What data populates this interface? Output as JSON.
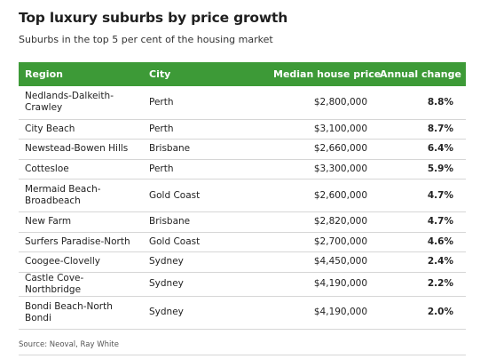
{
  "header": {
    "title": "Top luxury suburbs by price growth",
    "subtitle": "Suburbs in the top 5 per cent of the housing market"
  },
  "source": "Source: Neoval, Ray White",
  "colors": {
    "header_bg": "#3d9a37",
    "header_text": "#ffffff",
    "row_border": "#d6d6d6"
  },
  "chart_data": {
    "type": "table",
    "title": "Top luxury suburbs by price growth",
    "subtitle": "Suburbs in the top 5 per cent of the housing market",
    "columns": [
      "Region",
      "City",
      "Median house price",
      "Annual change"
    ],
    "rows": [
      {
        "region_lines": [
          "Nedlands-Dalkeith-",
          "Crawley"
        ],
        "city": "Perth",
        "price": "$2,800,000",
        "change": "8.8%"
      },
      {
        "region_lines": [
          "City Beach"
        ],
        "city": "Perth",
        "price": "$3,100,000",
        "change": "8.7%"
      },
      {
        "region_lines": [
          "Newstead-Bowen Hills"
        ],
        "city": "Brisbane",
        "price": "$2,660,000",
        "change": "6.4%"
      },
      {
        "region_lines": [
          "Cottesloe"
        ],
        "city": "Perth",
        "price": "$3,300,000",
        "change": "5.9%"
      },
      {
        "region_lines": [
          "Mermaid Beach-",
          "Broadbeach"
        ],
        "city": "Gold Coast",
        "price": "$2,600,000",
        "change": "4.7%"
      },
      {
        "region_lines": [
          "New Farm"
        ],
        "city": "Brisbane",
        "price": "$2,820,000",
        "change": "4.7%"
      },
      {
        "region_lines": [
          "Surfers Paradise-North"
        ],
        "city": "Gold Coast",
        "price": "$2,700,000",
        "change": "4.6%"
      },
      {
        "region_lines": [
          "Coogee-Clovelly"
        ],
        "city": "Sydney",
        "price": "$4,450,000",
        "change": "2.4%"
      },
      {
        "region_lines": [
          "Castle Cove-Northbridge"
        ],
        "city": "Sydney",
        "price": "$4,190,000",
        "change": "2.2%"
      },
      {
        "region_lines": [
          "Bondi Beach-North",
          "Bondi"
        ],
        "city": "Sydney",
        "price": "$4,190,000",
        "change": "2.0%"
      }
    ],
    "source": "Source: Neoval, Ray White"
  }
}
